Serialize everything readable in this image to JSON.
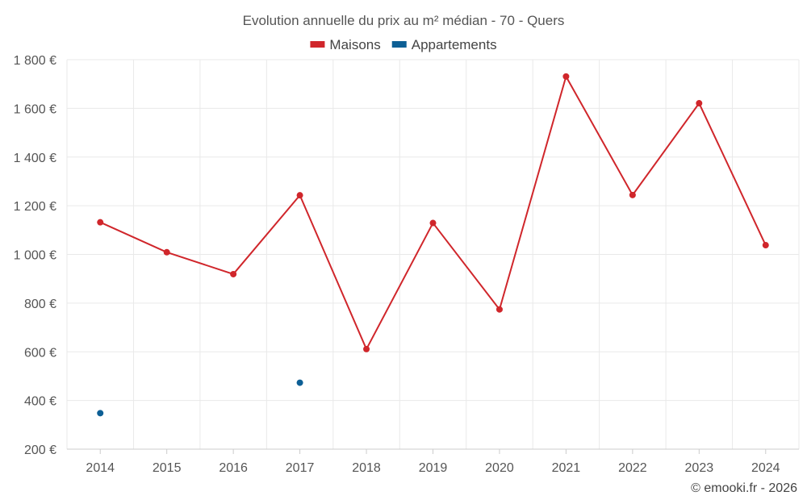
{
  "chart_data": {
    "type": "line",
    "title": "Evolution annuelle du prix au m² médian - 70 - Quers",
    "categories": [
      "2014",
      "2015",
      "2016",
      "2017",
      "2018",
      "2019",
      "2020",
      "2021",
      "2022",
      "2023",
      "2024"
    ],
    "series": [
      {
        "name": "Maisons",
        "color": "#d0262b",
        "values": [
          1132,
          1009,
          919,
          1243,
          611,
          1129,
          774,
          1731,
          1244,
          1621,
          1038
        ]
      },
      {
        "name": "Appartements",
        "color": "#0d5f95",
        "values": [
          348,
          null,
          null,
          473,
          null,
          null,
          null,
          null,
          null,
          null,
          null
        ]
      }
    ],
    "ylim": [
      200,
      1800
    ],
    "yticks": [
      200,
      400,
      600,
      800,
      1000,
      1200,
      1400,
      1600,
      1800
    ],
    "ytick_labels": [
      "200 €",
      "400 €",
      "600 €",
      "800 €",
      "1 000 €",
      "1 200 €",
      "1 400 €",
      "1 600 €",
      "1 800 €"
    ],
    "xlabel": "",
    "ylabel": "",
    "grid": true,
    "legend_position": "top-center"
  },
  "credit": "© emooki.fr - 2026"
}
